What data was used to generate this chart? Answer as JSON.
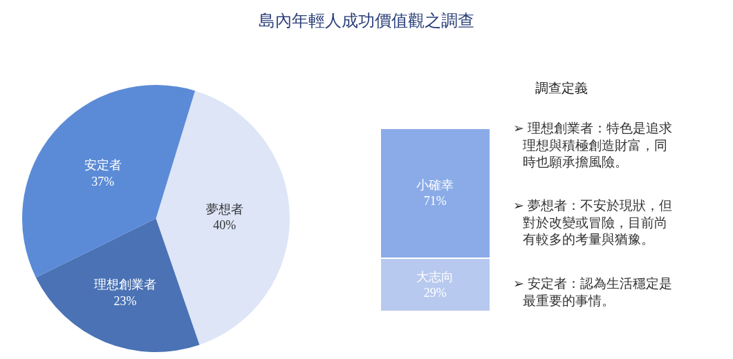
{
  "chart_data": [
    {
      "type": "pie",
      "title": "島內年輕人成功價值觀之調查",
      "categories": [
        "夢想者",
        "理想創業者",
        "安定者"
      ],
      "values": [
        40,
        23,
        37
      ],
      "colors": [
        "#dde5f7",
        "#4a72b5",
        "#5b8bd6"
      ],
      "value_labels": [
        "40%",
        "23%",
        "37%"
      ]
    },
    {
      "type": "bar",
      "stacked": true,
      "categories": [
        null
      ],
      "series": [
        {
          "name": "大志向",
          "color": "#b8c9ef",
          "values": [
            29
          ],
          "value_labels": [
            "29%"
          ]
        },
        {
          "name": "小確幸",
          "color": "#8aabe8",
          "values": [
            71
          ],
          "value_labels": [
            "71%"
          ]
        }
      ]
    },
    {
      "type": "other",
      "title": "調查定義",
      "annotations": [
        "➢ 理想創業者：特色是追求理想與積極創造財富，同時也願承擔風險。",
        "➢ 夢想者：不安於現狀，但對於改變或冒險，目前尚有較多的考量與猶豫。",
        "➢ 安定者：認為生活穩定是最重要的事情。"
      ]
    }
  ]
}
